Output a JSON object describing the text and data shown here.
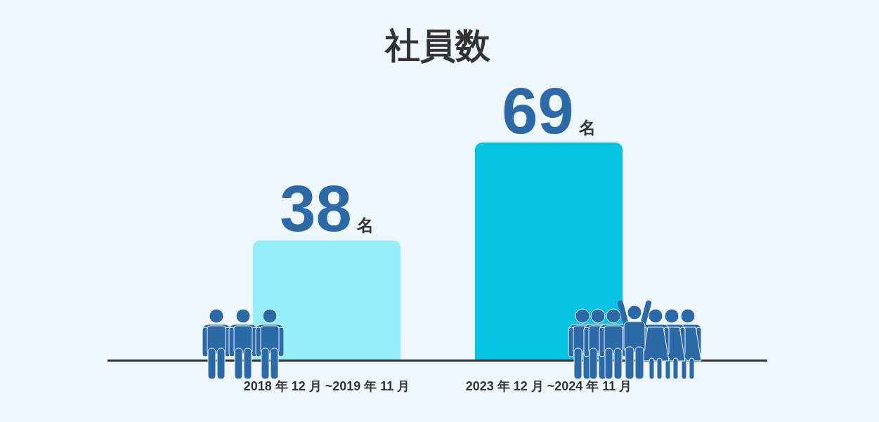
{
  "chart_data": {
    "type": "bar",
    "title": "社員数",
    "categories": [
      "2018 年 12 月 ~2019 年 11 月",
      "2023 年 12 月 ~2024 年 11 月"
    ],
    "values": [
      38,
      69
    ],
    "colors": [
      "#94effa",
      "#06c3e2"
    ],
    "value_labels": [
      "38名",
      "69名"
    ]
  }
}
